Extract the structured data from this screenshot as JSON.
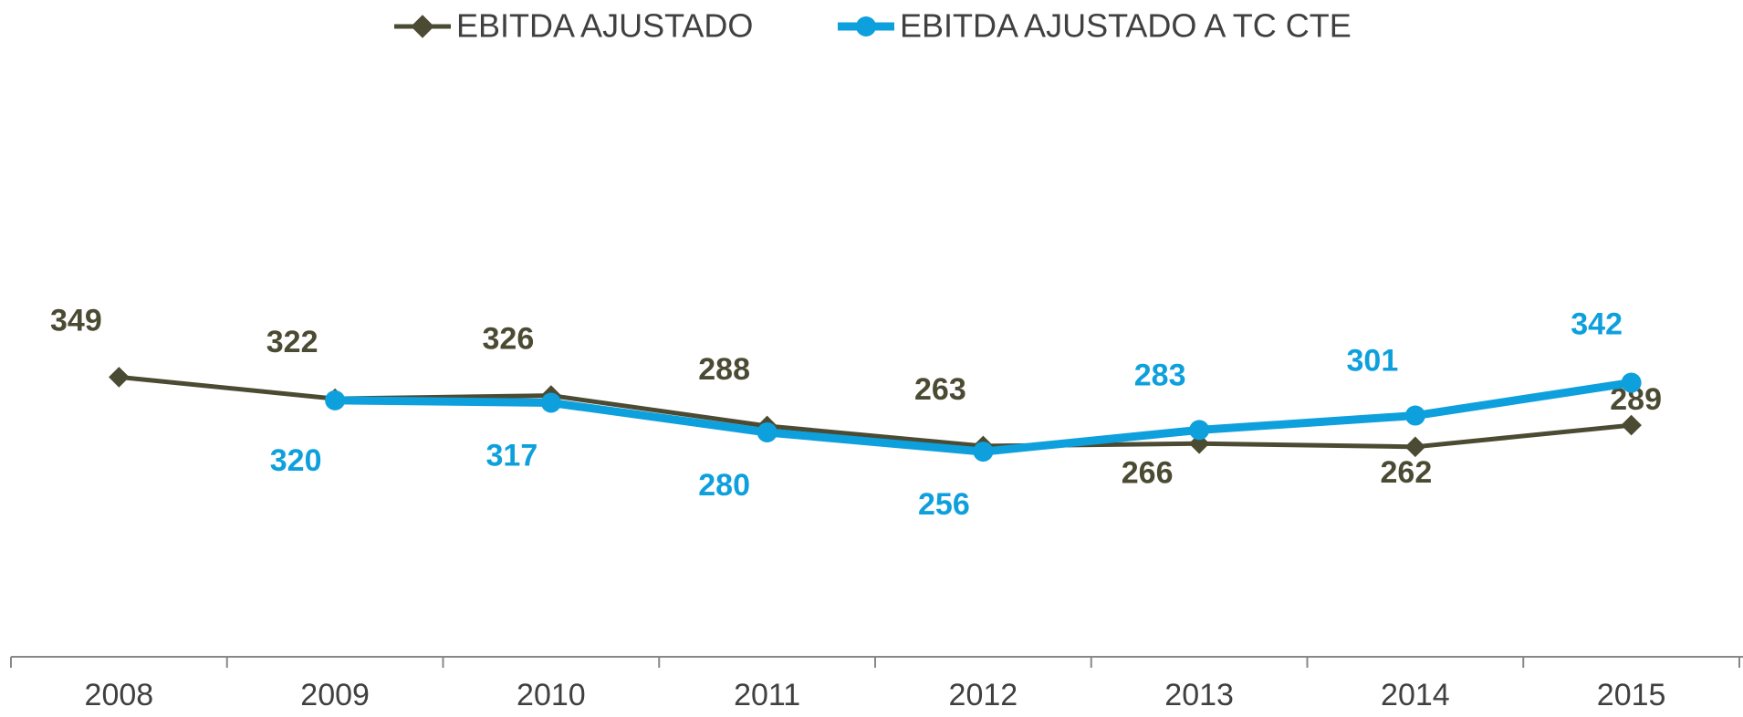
{
  "chart_data": {
    "type": "line",
    "categories": [
      "2008",
      "2009",
      "2010",
      "2011",
      "2012",
      "2013",
      "2014",
      "2015"
    ],
    "series": [
      {
        "name": "EBITDA AJUSTADO",
        "color": "#4b4b33",
        "values": [
          349,
          322,
          326,
          288,
          263,
          266,
          262,
          289
        ]
      },
      {
        "name": "EBITDA AJUSTADO A TC CTE",
        "color": "#0ea0dc",
        "values": [
          null,
          320,
          317,
          280,
          256,
          283,
          301,
          342
        ]
      }
    ],
    "ylim": [
      0,
      700
    ]
  }
}
